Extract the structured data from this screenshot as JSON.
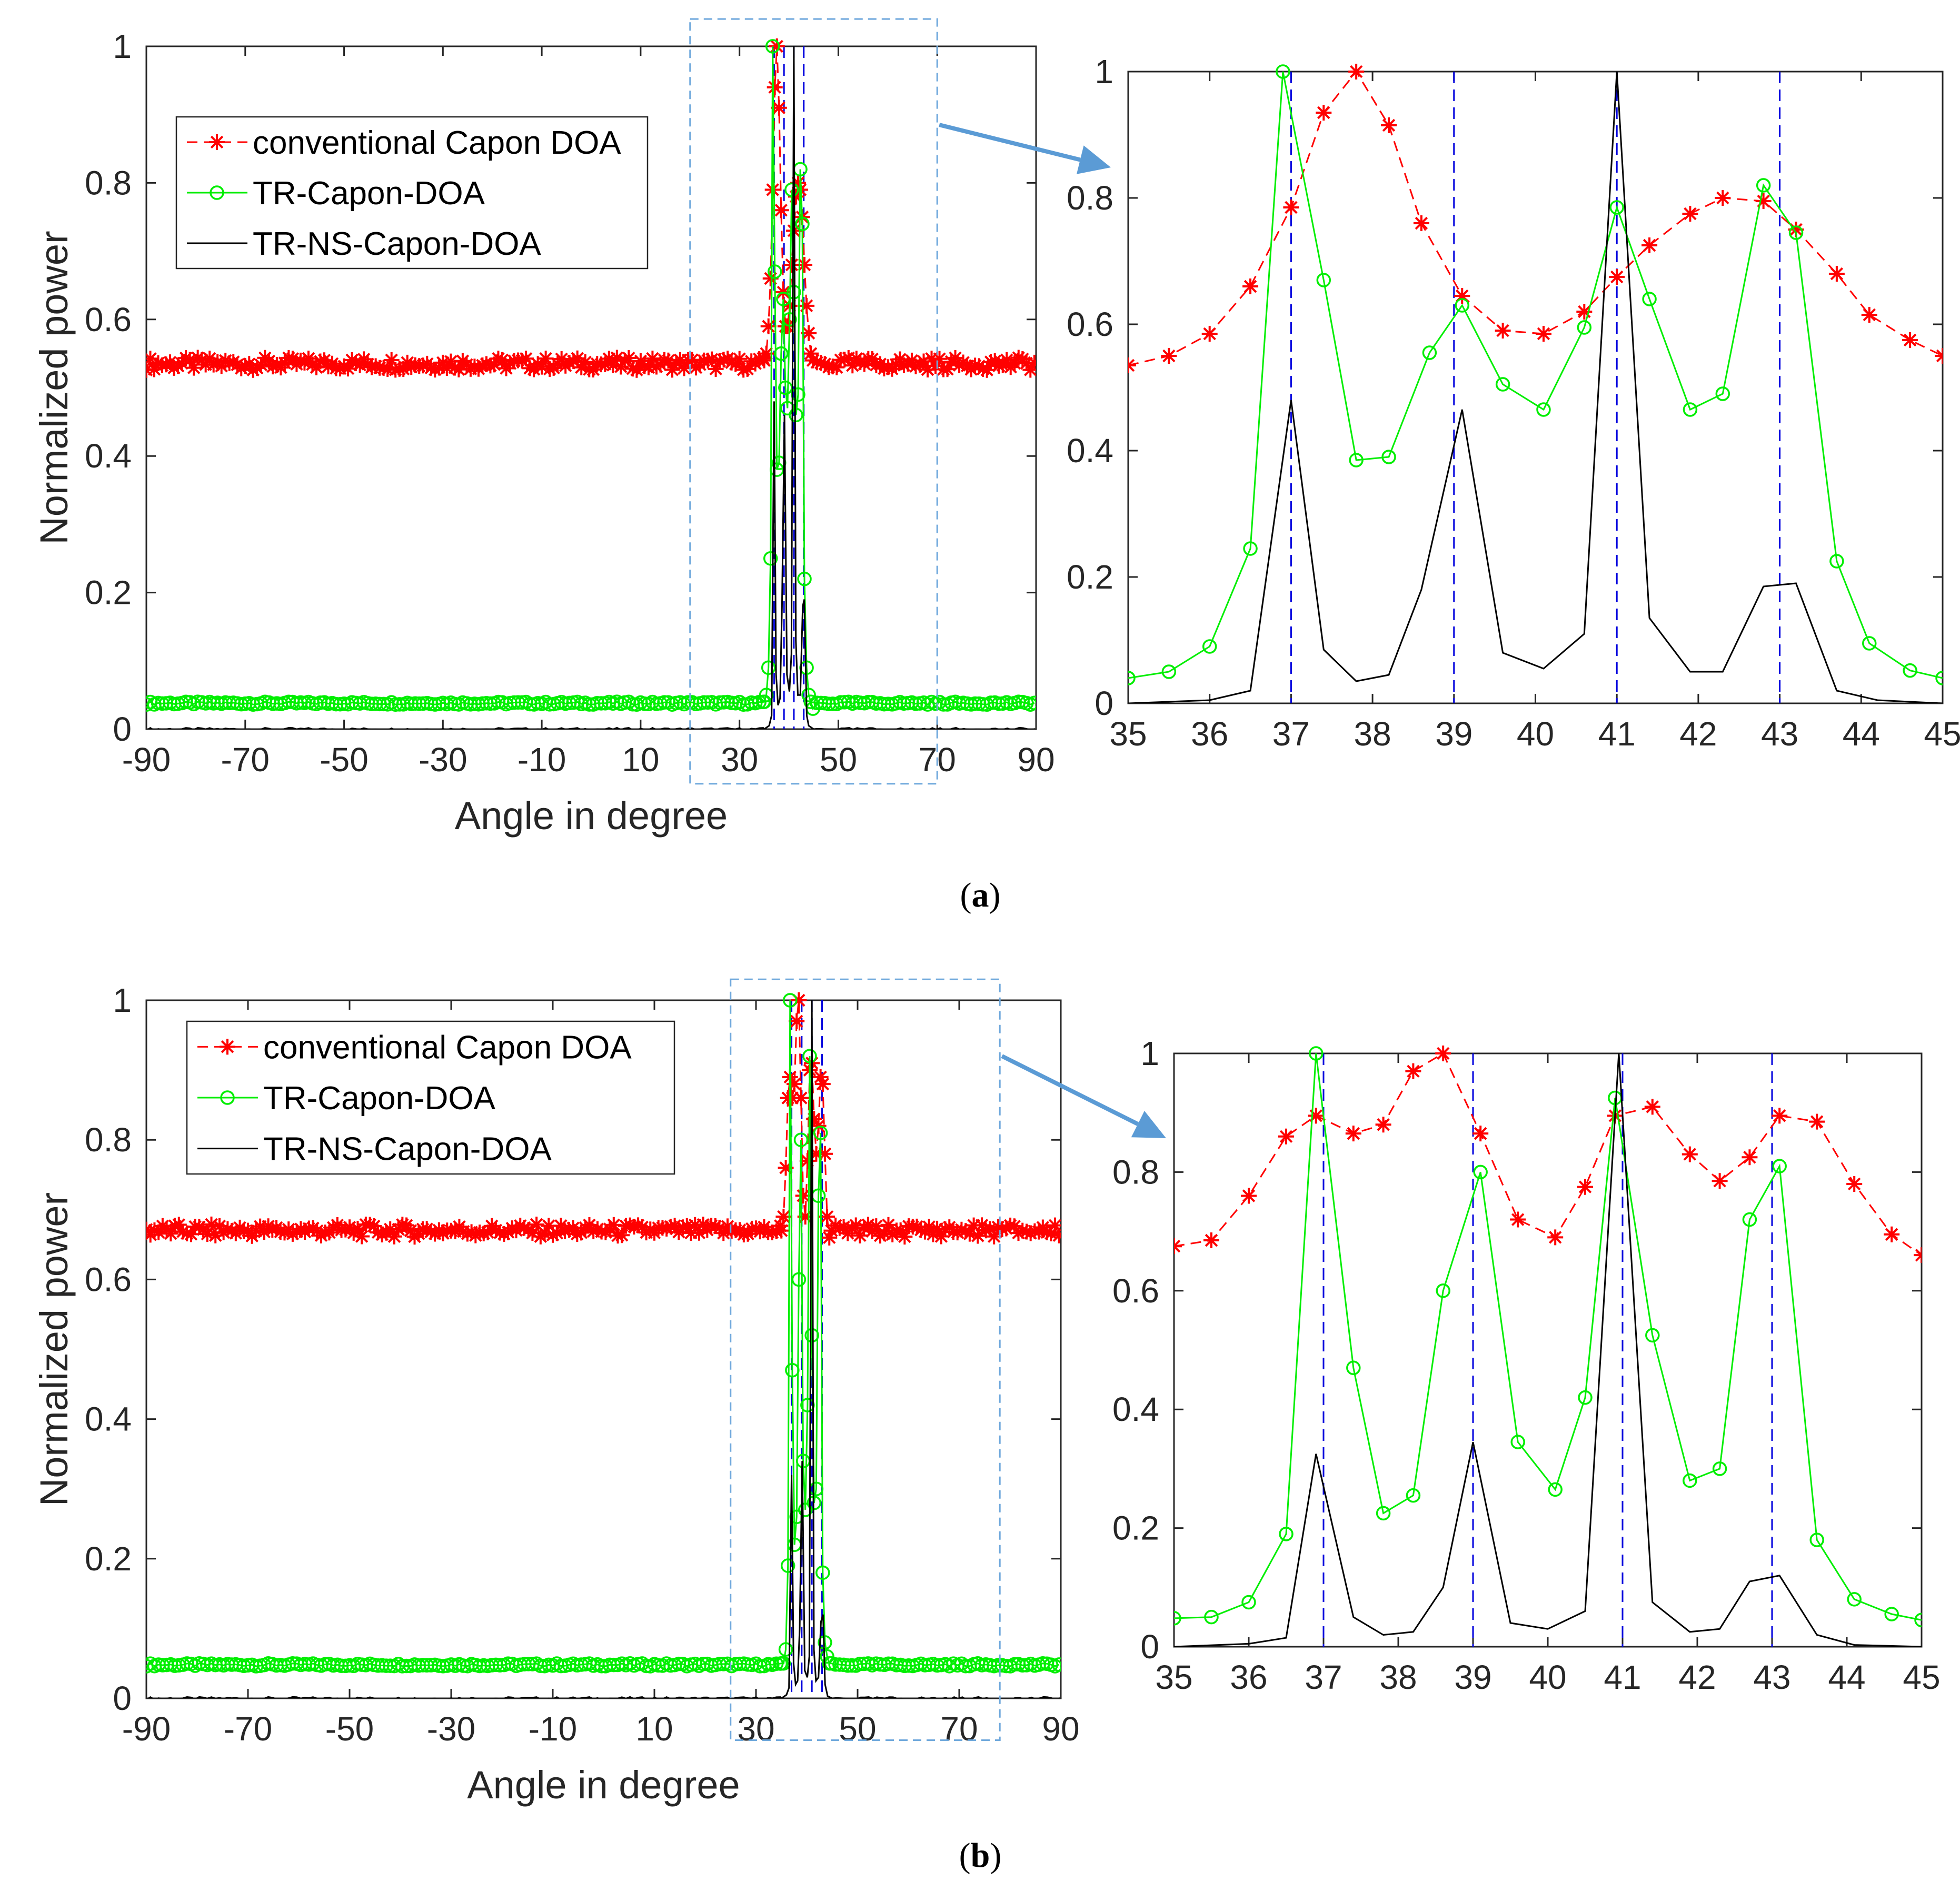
{
  "figure": {
    "captions": [
      {
        "prefix": "(",
        "letter": "a",
        "suffix": ")"
      },
      {
        "prefix": "(",
        "letter": "b",
        "suffix": ")"
      }
    ]
  },
  "colors": {
    "conventional": "#ff0000",
    "tr_capon": "#00ee00",
    "tr_ns_capon": "#000000",
    "true_doa": "#0000dd",
    "zoom_box": "#6fa8dc",
    "arrow": "#5b9bd5"
  },
  "chart_data": [
    {
      "panel": "a",
      "view": "full",
      "type": "line",
      "xlabel": "Angle in degree",
      "ylabel": "Normalized power",
      "xlim": [
        -90,
        90
      ],
      "ylim": [
        0,
        1
      ],
      "xticks": [
        "-90",
        "-70",
        "-50",
        "-30",
        "-10",
        "10",
        "30",
        "50",
        "70",
        "90"
      ],
      "yticks": [
        "0",
        "0.2",
        "0.4",
        "0.6",
        "0.8",
        "1"
      ],
      "legend": {
        "position": "top-left",
        "entries": [
          "conventional Capon DOA",
          "TR-Capon-DOA",
          "TR-NS-Capon-DOA"
        ]
      },
      "zoom_region": {
        "x": [
          20,
          70
        ],
        "y": [
          -0.08,
          1.04
        ]
      },
      "true_doa_lines": [
        37,
        39,
        41,
        43
      ],
      "series": [
        {
          "name": "conventional Capon DOA",
          "style": "dashed",
          "marker": "asterisk",
          "baseline": 0.535,
          "x": [
            35,
            35.43,
            35.86,
            36.29,
            36.71,
            37.14,
            37.57,
            38,
            38.43,
            38.86,
            39.29,
            39.71,
            40.14,
            40.57,
            41,
            41.43,
            41.86,
            42.29,
            42.71,
            43.14,
            43.57,
            44,
            44.43,
            44.86
          ],
          "values": [
            0.54,
            0.55,
            0.59,
            0.66,
            0.79,
            0.94,
            1.0,
            0.91,
            0.76,
            0.64,
            0.59,
            0.59,
            0.62,
            0.68,
            0.73,
            0.78,
            0.8,
            0.79,
            0.75,
            0.68,
            0.62,
            0.58,
            0.55,
            0.54
          ]
        },
        {
          "name": "TR-Capon-DOA",
          "style": "solid",
          "marker": "circle",
          "baseline": 0.038,
          "x": [
            35,
            35.43,
            35.86,
            36.29,
            36.71,
            37.14,
            37.57,
            38,
            38.43,
            38.86,
            39.29,
            39.71,
            40.14,
            40.57,
            41,
            41.43,
            41.86,
            42.29,
            42.71,
            43.14,
            43.57,
            44,
            44.43,
            44.86
          ],
          "values": [
            0.04,
            0.05,
            0.09,
            0.25,
            1.0,
            0.67,
            0.38,
            0.39,
            0.55,
            0.63,
            0.5,
            0.47,
            0.6,
            0.79,
            0.64,
            0.46,
            0.49,
            0.82,
            0.74,
            0.22,
            0.09,
            0.05,
            0.04,
            0.03
          ]
        },
        {
          "name": "TR-NS-Capon-DOA",
          "style": "solid",
          "marker": "none",
          "baseline": 0.0,
          "x": [
            35,
            36,
            36.5,
            37,
            37.4,
            37.8,
            38.2,
            38.6,
            39.1,
            39.6,
            40.1,
            40.5,
            41,
            41.4,
            41.8,
            42.3,
            42.8,
            43.1,
            43.6,
            44,
            45
          ],
          "values": [
            0.0,
            0.005,
            0.02,
            0.48,
            0.08,
            0.035,
            0.045,
            0.18,
            0.46,
            0.08,
            0.055,
            0.11,
            1.0,
            0.13,
            0.05,
            0.05,
            0.18,
            0.19,
            0.02,
            0.005,
            0.0
          ]
        }
      ]
    },
    {
      "panel": "a",
      "view": "zoom",
      "type": "line",
      "xlim": [
        35,
        45
      ],
      "ylim": [
        0,
        1
      ],
      "xticks": [
        "35",
        "36",
        "37",
        "38",
        "39",
        "40",
        "41",
        "42",
        "43",
        "44",
        "45"
      ],
      "yticks": [
        "0",
        "0.2",
        "0.4",
        "0.6",
        "0.8",
        "1"
      ],
      "true_doa_lines": [
        37,
        39,
        41,
        43
      ],
      "series": [
        {
          "name": "conventional Capon DOA",
          "style": "dashed",
          "marker": "asterisk",
          "x": [
            35,
            35.5,
            36,
            36.5,
            37,
            37.4,
            37.8,
            38.2,
            38.6,
            39.1,
            39.6,
            40.1,
            40.6,
            41,
            41.4,
            41.9,
            42.3,
            42.8,
            43.2,
            43.7,
            44.1,
            44.6,
            45
          ],
          "values": [
            0.535,
            0.55,
            0.585,
            0.66,
            0.785,
            0.935,
            1.0,
            0.915,
            0.76,
            0.645,
            0.59,
            0.585,
            0.62,
            0.675,
            0.725,
            0.775,
            0.8,
            0.795,
            0.75,
            0.68,
            0.615,
            0.575,
            0.55
          ]
        },
        {
          "name": "TR-Capon-DOA",
          "style": "solid",
          "marker": "circle",
          "x": [
            35,
            35.5,
            36,
            36.5,
            36.9,
            37.4,
            37.8,
            38.2,
            38.7,
            39.1,
            39.6,
            40.1,
            40.6,
            41,
            41.4,
            41.9,
            42.3,
            42.8,
            43.2,
            43.7,
            44.1,
            44.6,
            45
          ],
          "values": [
            0.04,
            0.05,
            0.09,
            0.245,
            1.0,
            0.67,
            0.385,
            0.39,
            0.555,
            0.63,
            0.505,
            0.465,
            0.595,
            0.785,
            0.64,
            0.465,
            0.49,
            0.82,
            0.745,
            0.225,
            0.095,
            0.052,
            0.04
          ]
        },
        {
          "name": "TR-NS-Capon-DOA",
          "style": "solid",
          "marker": "none",
          "x": [
            35,
            36,
            36.5,
            37,
            37.4,
            37.8,
            38.2,
            38.6,
            39.1,
            39.6,
            40.1,
            40.6,
            41,
            41.4,
            41.9,
            42.3,
            42.8,
            43.2,
            43.7,
            44.2,
            45
          ],
          "values": [
            0.0,
            0.005,
            0.02,
            0.48,
            0.085,
            0.035,
            0.045,
            0.18,
            0.465,
            0.08,
            0.055,
            0.11,
            1.0,
            0.135,
            0.05,
            0.05,
            0.185,
            0.19,
            0.02,
            0.005,
            0.0
          ]
        }
      ]
    },
    {
      "panel": "b",
      "view": "full",
      "type": "line",
      "xlabel": "Angle in degree",
      "ylabel": "Normalized power",
      "xlim": [
        -90,
        90
      ],
      "ylim": [
        0,
        1
      ],
      "xticks": [
        "-90",
        "-70",
        "-50",
        "-30",
        "-10",
        "10",
        "30",
        "50",
        "70",
        "90"
      ],
      "yticks": [
        "0",
        "0.2",
        "0.4",
        "0.6",
        "0.8",
        "1"
      ],
      "legend": {
        "position": "top-left",
        "entries": [
          "conventional Capon DOA",
          "TR-Capon-DOA",
          "TR-NS-Capon-DOA"
        ]
      },
      "zoom_region": {
        "x": [
          25,
          78
        ],
        "y": [
          -0.06,
          1.03
        ]
      },
      "true_doa_lines": [
        37,
        39,
        41,
        43
      ],
      "series": [
        {
          "name": "conventional Capon DOA",
          "style": "dashed",
          "marker": "asterisk",
          "baseline": 0.67,
          "x": [
            35,
            35.43,
            35.86,
            36.29,
            36.71,
            37.14,
            37.57,
            38,
            38.43,
            38.86,
            39.29,
            39.71,
            40.14,
            40.57,
            41,
            41.43,
            41.86,
            42.29,
            42.71,
            43.14,
            43.57,
            44,
            44.43,
            44.86
          ],
          "values": [
            0.67,
            0.69,
            0.76,
            0.86,
            0.89,
            0.86,
            0.88,
            0.97,
            1.0,
            0.86,
            0.72,
            0.69,
            0.77,
            0.9,
            0.91,
            0.83,
            0.78,
            0.82,
            0.89,
            0.88,
            0.78,
            0.69,
            0.66,
            0.67
          ]
        },
        {
          "name": "TR-Capon-DOA",
          "style": "solid",
          "marker": "circle",
          "baseline": 0.048,
          "x": [
            35,
            35.43,
            35.86,
            36.29,
            36.71,
            37.14,
            37.57,
            38,
            38.43,
            38.86,
            39.29,
            39.71,
            40.14,
            40.57,
            41,
            41.43,
            41.86,
            42.29,
            42.71,
            43.14,
            43.57,
            44,
            44.43,
            44.86
          ],
          "values": [
            0.05,
            0.05,
            0.07,
            0.19,
            1.0,
            0.47,
            0.22,
            0.26,
            0.6,
            0.8,
            0.34,
            0.27,
            0.42,
            0.92,
            0.52,
            0.28,
            0.3,
            0.72,
            0.81,
            0.18,
            0.08,
            0.06,
            0.05,
            0.05
          ]
        },
        {
          "name": "TR-NS-Capon-DOA",
          "style": "solid",
          "marker": "none",
          "baseline": 0.0,
          "x": [
            35,
            36,
            36.5,
            37,
            37.4,
            37.8,
            38.2,
            38.6,
            39.1,
            39.6,
            40.1,
            40.5,
            41,
            41.4,
            41.8,
            42.3,
            42.8,
            43.2,
            43.6,
            44.1,
            45
          ],
          "values": [
            0.0,
            0.005,
            0.015,
            0.32,
            0.05,
            0.02,
            0.025,
            0.1,
            0.34,
            0.04,
            0.03,
            0.06,
            1.0,
            0.07,
            0.025,
            0.03,
            0.11,
            0.12,
            0.02,
            0.003,
            0.0
          ]
        }
      ]
    },
    {
      "panel": "b",
      "view": "zoom",
      "type": "line",
      "xlim": [
        35,
        45
      ],
      "ylim": [
        0,
        1
      ],
      "xticks": [
        "35",
        "36",
        "37",
        "38",
        "39",
        "40",
        "41",
        "42",
        "43",
        "44",
        "45"
      ],
      "yticks": [
        "0",
        "0.2",
        "0.4",
        "0.6",
        "0.8",
        "1"
      ],
      "true_doa_lines": [
        37,
        39,
        41,
        43
      ],
      "series": [
        {
          "name": "conventional Capon DOA",
          "style": "dashed",
          "marker": "asterisk",
          "x": [
            35,
            35.5,
            36,
            36.5,
            36.9,
            37.4,
            37.8,
            38.2,
            38.6,
            39.1,
            39.6,
            40.1,
            40.5,
            40.9,
            41.4,
            41.9,
            42.3,
            42.7,
            43.1,
            43.6,
            44.1,
            44.6,
            45
          ],
          "values": [
            0.675,
            0.685,
            0.76,
            0.86,
            0.895,
            0.865,
            0.88,
            0.97,
            1.0,
            0.865,
            0.72,
            0.69,
            0.775,
            0.895,
            0.91,
            0.83,
            0.785,
            0.825,
            0.895,
            0.885,
            0.78,
            0.695,
            0.66
          ]
        },
        {
          "name": "TR-Capon-DOA",
          "style": "solid",
          "marker": "circle",
          "x": [
            35,
            35.5,
            36,
            36.5,
            36.9,
            37.4,
            37.8,
            38.2,
            38.6,
            39.1,
            39.6,
            40.1,
            40.5,
            40.9,
            41.4,
            41.9,
            42.3,
            42.7,
            43.1,
            43.6,
            44.1,
            44.6,
            45
          ],
          "values": [
            0.048,
            0.05,
            0.075,
            0.19,
            1.0,
            0.47,
            0.225,
            0.255,
            0.6,
            0.8,
            0.345,
            0.265,
            0.42,
            0.925,
            0.525,
            0.28,
            0.3,
            0.72,
            0.81,
            0.18,
            0.08,
            0.055,
            0.045
          ]
        },
        {
          "name": "TR-NS-Capon-DOA",
          "style": "solid",
          "marker": "none",
          "x": [
            35,
            36,
            36.5,
            36.9,
            37.4,
            37.8,
            38.2,
            38.6,
            39,
            39.5,
            40,
            40.5,
            40.95,
            41.4,
            41.9,
            42.3,
            42.7,
            43.1,
            43.6,
            44.1,
            45
          ],
          "values": [
            0.0,
            0.005,
            0.015,
            0.325,
            0.05,
            0.02,
            0.025,
            0.1,
            0.345,
            0.04,
            0.03,
            0.06,
            1.0,
            0.075,
            0.025,
            0.03,
            0.11,
            0.12,
            0.02,
            0.003,
            0.0
          ]
        }
      ]
    }
  ]
}
